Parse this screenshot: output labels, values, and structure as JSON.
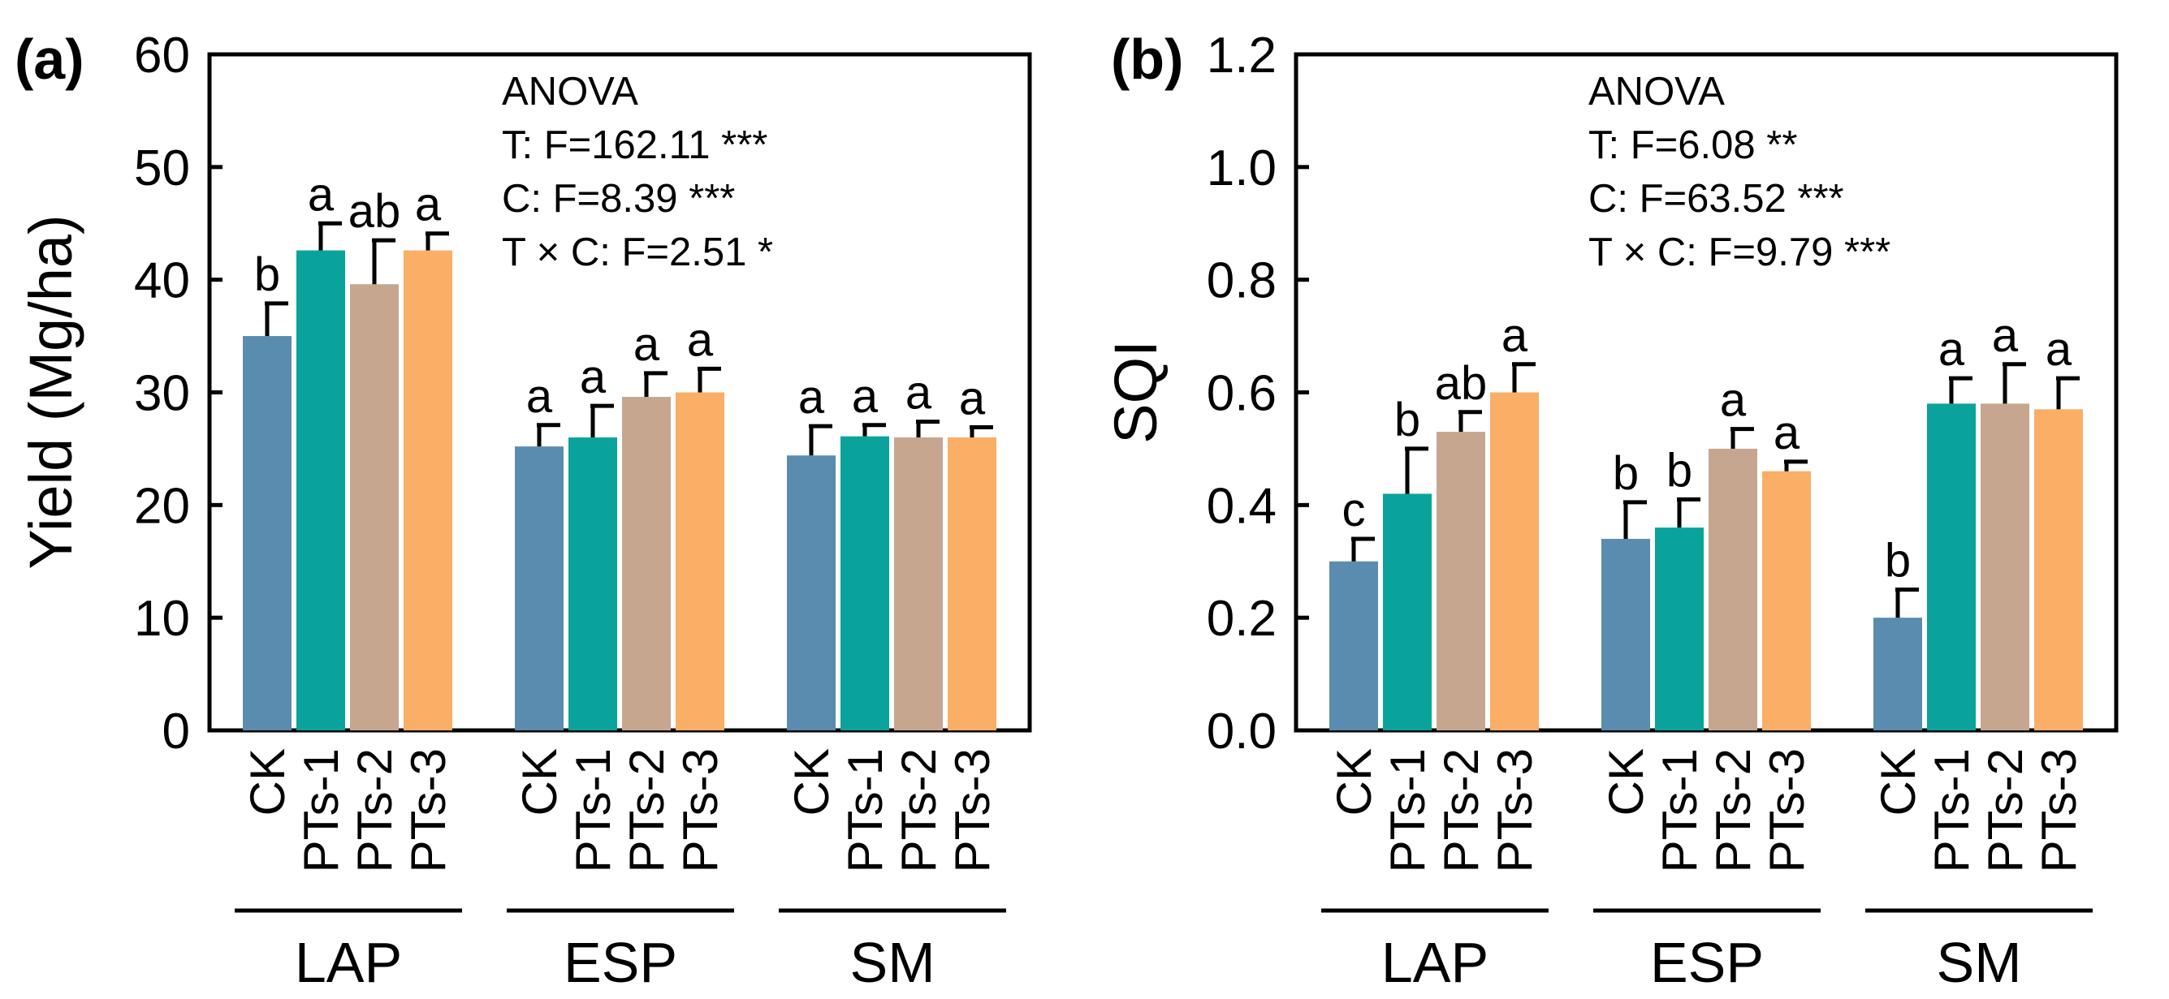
{
  "chart_data": [
    {
      "type": "bar",
      "panel_label": "(a)",
      "ylabel": "Yield (Mg/ha)",
      "ylim": [
        0,
        60
      ],
      "yticks": [
        "0",
        "10",
        "20",
        "30",
        "40",
        "50",
        "60"
      ],
      "ytick_values": [
        0,
        10,
        20,
        30,
        40,
        50,
        60
      ],
      "groups": [
        "LAP",
        "ESP",
        "SM"
      ],
      "categories": [
        "CK",
        "PTs-1",
        "PTs-2",
        "PTs-3"
      ],
      "colors": [
        "#5a8caf",
        "#0aa39c",
        "#c7a690",
        "#fbae66"
      ],
      "series": [
        {
          "group": "LAP",
          "values": [
            35.0,
            42.6,
            39.6,
            42.6
          ],
          "errors": [
            2.9,
            2.4,
            3.9,
            1.5
          ],
          "letters": [
            "b",
            "a",
            "ab",
            "a"
          ]
        },
        {
          "group": "ESP",
          "values": [
            25.2,
            26.0,
            29.6,
            30.0
          ],
          "errors": [
            1.9,
            2.8,
            2.1,
            2.1
          ],
          "letters": [
            "a",
            "a",
            "a",
            "a"
          ]
        },
        {
          "group": "SM",
          "values": [
            24.4,
            26.1,
            26.0,
            26.0
          ],
          "errors": [
            2.6,
            1.0,
            1.4,
            0.9
          ],
          "letters": [
            "a",
            "a",
            "a",
            "a"
          ]
        }
      ],
      "anova": [
        "ANOVA",
        "T: F=162.11 ***",
        "C: F=8.39 ***",
        "T × C: F=2.51 *"
      ]
    },
    {
      "type": "bar",
      "panel_label": "(b)",
      "ylabel": "SQI",
      "ylim": [
        0,
        1.2
      ],
      "yticks": [
        "0.0",
        "0.2",
        "0.4",
        "0.6",
        "0.8",
        "1.0",
        "1.2"
      ],
      "ytick_values": [
        0,
        0.2,
        0.4,
        0.6,
        0.8,
        1.0,
        1.2
      ],
      "groups": [
        "LAP",
        "ESP",
        "SM"
      ],
      "categories": [
        "CK",
        "PTs-1",
        "PTs-2",
        "PTs-3"
      ],
      "colors": [
        "#5a8caf",
        "#0aa39c",
        "#c7a690",
        "#fbae66"
      ],
      "series": [
        {
          "group": "LAP",
          "values": [
            0.3,
            0.42,
            0.53,
            0.6
          ],
          "errors": [
            0.04,
            0.08,
            0.035,
            0.05
          ],
          "letters": [
            "c",
            "b",
            "ab",
            "a"
          ]
        },
        {
          "group": "ESP",
          "values": [
            0.34,
            0.36,
            0.5,
            0.46
          ],
          "errors": [
            0.065,
            0.05,
            0.035,
            0.017
          ],
          "letters": [
            "b",
            "b",
            "a",
            "a"
          ]
        },
        {
          "group": "SM",
          "values": [
            0.2,
            0.58,
            0.58,
            0.57
          ],
          "errors": [
            0.05,
            0.045,
            0.07,
            0.055
          ],
          "letters": [
            "b",
            "a",
            "a",
            "a"
          ]
        }
      ],
      "anova": [
        "ANOVA",
        "T: F=6.08 **",
        "C: F=63.52 ***",
        "T × C: F=9.79 ***"
      ]
    }
  ]
}
